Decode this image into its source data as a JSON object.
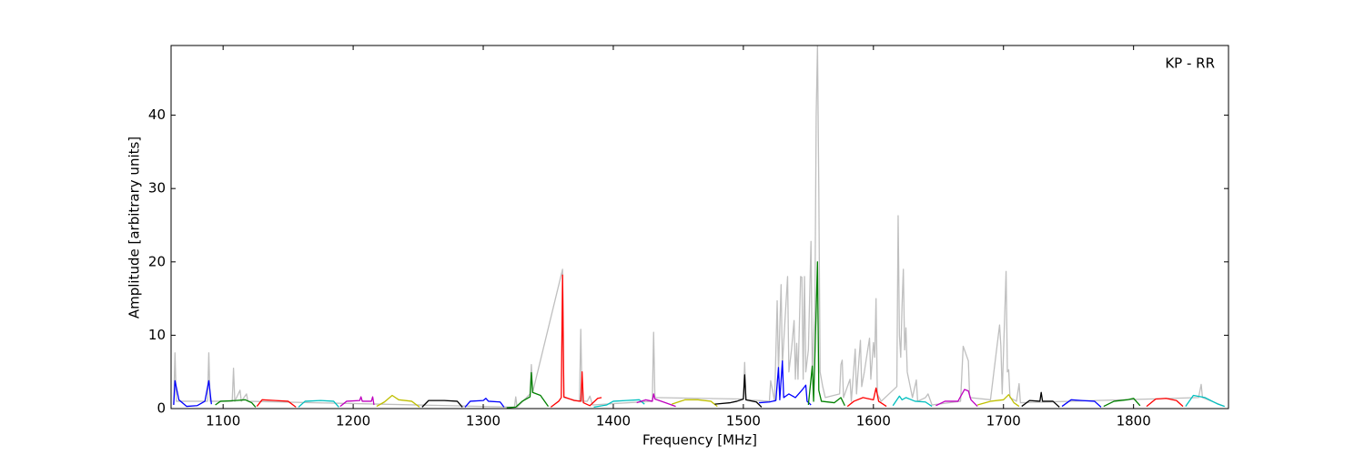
{
  "chart_data": {
    "type": "line",
    "xlabel": "Frequency [MHz]",
    "ylabel": "Amplitude [arbitrary units]",
    "annotation": "KP - RR",
    "xlim": [
      1060,
      1873
    ],
    "ylim": [
      0,
      49.5
    ],
    "xticks": [
      1100,
      1200,
      1300,
      1400,
      1500,
      1600,
      1700,
      1800
    ],
    "yticks": [
      0,
      10,
      20,
      30,
      40
    ],
    "series": [
      {
        "color": "#bfbfbf",
        "x": [
          1062,
          1063,
          1064,
          1088,
          1089,
          1090,
          1107,
          1108,
          1109,
          1113,
          1114,
          1118,
          1119,
          1324,
          1325,
          1326,
          1336,
          1337,
          1338,
          1361,
          1362,
          1374,
          1375,
          1376,
          1380,
          1382,
          1384,
          1430,
          1431,
          1432,
          1500,
          1501,
          1502,
          1520,
          1521,
          1524,
          1525,
          1526,
          1527,
          1529,
          1530,
          1531,
          1532,
          1534,
          1535,
          1537,
          1539,
          1540,
          1541,
          1542,
          1544,
          1545,
          1546,
          1547,
          1548,
          1550,
          1552,
          1553,
          1555,
          1556,
          1557,
          1558,
          1559,
          1561,
          1563,
          1574,
          1575,
          1576,
          1577,
          1582,
          1583,
          1586,
          1587,
          1589,
          1590,
          1591,
          1593,
          1597,
          1598,
          1600,
          1601,
          1602,
          1603,
          1606,
          1618,
          1619,
          1620,
          1621,
          1622,
          1623,
          1624,
          1625,
          1626,
          1630,
          1633,
          1634,
          1640,
          1642,
          1645,
          1667,
          1669,
          1670,
          1671,
          1672,
          1673,
          1674,
          1690,
          1697,
          1698,
          1699,
          1702,
          1703,
          1704,
          1705,
          1710,
          1712,
          1713,
          1850,
          1852,
          1853,
          1870
        ],
        "values": [
          0.5,
          7.6,
          1.0,
          1.0,
          7.6,
          1.0,
          1.0,
          5.5,
          1.0,
          2.5,
          1.0,
          2.0,
          1.0,
          0.2,
          1.6,
          0.2,
          2,
          6.0,
          2.2,
          19,
          1.5,
          1.0,
          10.8,
          1.0,
          1.0,
          1.7,
          0.5,
          1.0,
          10.4,
          1.5,
          1.3,
          6.3,
          1.2,
          1.0,
          3.8,
          1.0,
          7.6,
          14.7,
          5,
          16.9,
          6,
          9,
          12,
          18,
          5,
          8,
          12,
          4,
          8.9,
          4,
          18,
          17.9,
          4,
          18,
          5,
          8,
          22.8,
          5,
          13.5,
          40,
          49.5,
          30,
          5,
          3,
          1.5,
          2,
          6,
          6.6,
          1.5,
          4,
          1,
          8.1,
          2,
          7,
          9.3,
          3,
          5,
          9.6,
          4,
          9,
          7,
          15,
          2,
          1,
          3,
          26.3,
          10,
          7,
          14,
          19,
          8,
          11,
          5,
          1.5,
          3.9,
          1,
          1.5,
          2,
          0.5,
          1,
          8.5,
          8,
          7.5,
          7,
          6.5,
          1.5,
          1.2,
          11.4,
          8.5,
          2,
          18.7,
          5,
          5.3,
          1.5,
          1,
          3.4,
          0.8,
          1.5,
          3.3,
          1.5,
          0.3
        ]
      },
      {
        "color": "#0000ff",
        "x": [
          1062,
          1063,
          1066,
          1072,
          1080,
          1086,
          1089,
          1091
        ],
        "values": [
          0.5,
          3.8,
          1.2,
          0.3,
          0.4,
          1.0,
          3.8,
          0.6
        ]
      },
      {
        "color": "#008000",
        "x": [
          1094,
          1098,
          1110,
          1117,
          1122,
          1125
        ],
        "values": [
          0.5,
          1.0,
          1.1,
          1.2,
          0.8,
          0.2
        ]
      },
      {
        "color": "#ff0000",
        "x": [
          1126,
          1130,
          1140,
          1150,
          1156
        ],
        "values": [
          0.3,
          1.2,
          1.1,
          1.0,
          0.2
        ]
      },
      {
        "color": "#00bfbf",
        "x": [
          1158,
          1163,
          1175,
          1185,
          1189
        ],
        "values": [
          0.2,
          1.0,
          1.1,
          1.0,
          0.2
        ]
      },
      {
        "color": "#bf00bf",
        "x": [
          1190,
          1195,
          1205,
          1206,
          1207,
          1214,
          1215,
          1216
        ],
        "values": [
          0.3,
          1.0,
          1.1,
          1.6,
          1.0,
          1.0,
          1.6,
          0.5
        ]
      },
      {
        "color": "#bfbf00",
        "x": [
          1218,
          1224,
          1230,
          1235,
          1245,
          1251
        ],
        "values": [
          0.3,
          0.9,
          1.8,
          1.2,
          1.0,
          0.2
        ]
      },
      {
        "color": "#000000",
        "x": [
          1253,
          1258,
          1270,
          1280,
          1284
        ],
        "values": [
          0.2,
          1.1,
          1.1,
          1.0,
          0.2
        ]
      },
      {
        "color": "#0000ff",
        "x": [
          1286,
          1290,
          1300,
          1302,
          1304,
          1313,
          1316
        ],
        "values": [
          0.2,
          1.0,
          1.1,
          1.4,
          1.0,
          0.9,
          0.2
        ]
      },
      {
        "color": "#008000",
        "x": [
          1318,
          1325,
          1330,
          1336,
          1337,
          1338,
          1344,
          1350
        ],
        "values": [
          0.1,
          0.2,
          1.0,
          1.6,
          4.9,
          2.2,
          1.8,
          0.3
        ]
      },
      {
        "color": "#ff0000",
        "x": [
          1352,
          1358,
          1360,
          1361,
          1362,
          1370,
          1375,
          1376,
          1377,
          1382,
          1388,
          1391
        ],
        "values": [
          0.2,
          1.0,
          1.5,
          18.2,
          1.6,
          1.1,
          1.0,
          5.0,
          0.8,
          0.4,
          1.4,
          1.5
        ]
      },
      {
        "color": "#00bfbf",
        "x": [
          1385,
          1395,
          1400,
          1410,
          1420,
          1424
        ],
        "values": [
          0.2,
          0.5,
          1.0,
          1.1,
          1.2,
          0.6
        ]
      },
      {
        "color": "#bf00bf",
        "x": [
          1418,
          1425,
          1430,
          1431,
          1432,
          1440,
          1448
        ],
        "values": [
          0.8,
          1.2,
          1.0,
          2.0,
          1.3,
          0.8,
          0.3
        ]
      },
      {
        "color": "#bfbf00",
        "x": [
          1445,
          1455,
          1465,
          1475,
          1480
        ],
        "values": [
          0.6,
          1.2,
          1.2,
          1.0,
          0.3
        ]
      },
      {
        "color": "#000000",
        "x": [
          1478,
          1490,
          1495,
          1500,
          1501,
          1502,
          1510,
          1514
        ],
        "values": [
          0.6,
          0.8,
          1.0,
          1.3,
          4.6,
          1.2,
          0.9,
          0.2
        ]
      },
      {
        "color": "#0000ff",
        "x": [
          1512,
          1520,
          1525,
          1527,
          1528,
          1530,
          1531,
          1535,
          1540,
          1545,
          1548,
          1549,
          1552
        ],
        "values": [
          0.8,
          0.9,
          1.1,
          5.6,
          1.2,
          6.5,
          1.5,
          2.0,
          1.5,
          2.5,
          3.2,
          1.0,
          0.5
        ]
      },
      {
        "color": "#008000",
        "x": [
          1550,
          1553,
          1554,
          1556,
          1557,
          1558,
          1560,
          1570,
          1575,
          1578
        ],
        "values": [
          0.5,
          5.8,
          1.0,
          13.5,
          20.0,
          2.5,
          1.0,
          0.8,
          1.5,
          0.4
        ]
      },
      {
        "color": "#ff0000",
        "x": [
          1580,
          1585,
          1592,
          1600,
          1602,
          1604,
          1610
        ],
        "values": [
          0.3,
          1.0,
          1.5,
          1.2,
          2.8,
          1.0,
          0.3
        ]
      },
      {
        "color": "#00bfbf",
        "x": [
          1615,
          1620,
          1622,
          1625,
          1632,
          1640,
          1645
        ],
        "values": [
          0.4,
          1.7,
          1.2,
          1.5,
          1.0,
          0.9,
          0.3
        ]
      },
      {
        "color": "#bf00bf",
        "x": [
          1648,
          1655,
          1665,
          1670,
          1673,
          1675,
          1680
        ],
        "values": [
          0.4,
          1.0,
          1.0,
          2.6,
          2.4,
          1.2,
          0.3
        ]
      },
      {
        "color": "#bfbf00",
        "x": [
          1680,
          1690,
          1700,
          1704,
          1708,
          1712
        ],
        "values": [
          0.5,
          1.0,
          1.2,
          1.9,
          0.8,
          0.3
        ]
      },
      {
        "color": "#000000",
        "x": [
          1714,
          1720,
          1728,
          1729,
          1730,
          1738,
          1743
        ],
        "values": [
          0.3,
          1.1,
          1.0,
          2.2,
          1.0,
          1.0,
          0.2
        ]
      },
      {
        "color": "#0000ff",
        "x": [
          1745,
          1752,
          1760,
          1770,
          1775
        ],
        "values": [
          0.3,
          1.2,
          1.1,
          1.0,
          0.2
        ]
      },
      {
        "color": "#008000",
        "x": [
          1777,
          1785,
          1795,
          1800,
          1805
        ],
        "values": [
          0.3,
          1.0,
          1.2,
          1.4,
          0.4
        ]
      },
      {
        "color": "#ff0000",
        "x": [
          1810,
          1817,
          1825,
          1833,
          1838
        ],
        "values": [
          0.3,
          1.3,
          1.4,
          1.1,
          0.3
        ]
      },
      {
        "color": "#00bfbf",
        "x": [
          1840,
          1846,
          1855,
          1865,
          1870
        ],
        "values": [
          0.3,
          1.8,
          1.5,
          0.6,
          0.3
        ]
      }
    ]
  }
}
